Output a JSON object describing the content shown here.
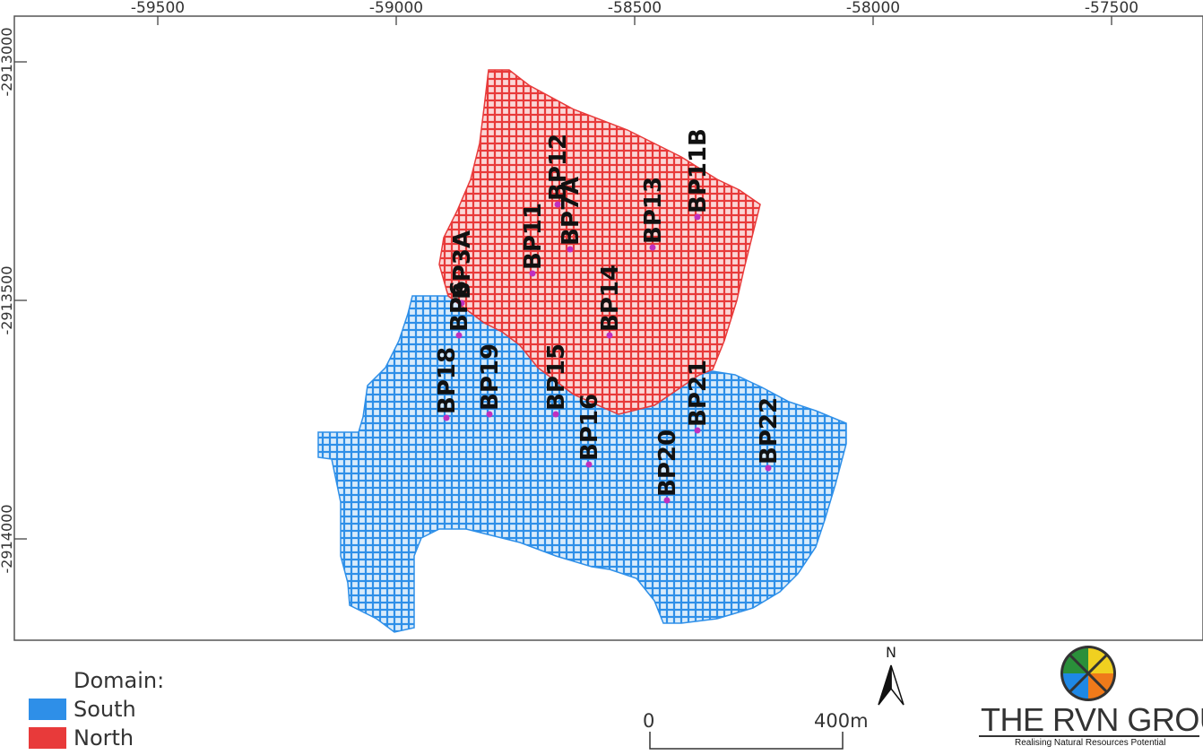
{
  "map": {
    "x_axis_ticks": [
      "-59500",
      "-59000",
      "-58500",
      "-58000",
      "-57500"
    ],
    "y_axis_ticks": [
      "-2913000",
      "-2913500",
      "-2914000"
    ],
    "colors": {
      "south": "#2e8fe8",
      "north": "#e83a3a",
      "collar": "#c02fc0",
      "frame": "#555555"
    },
    "drillholes": [
      {
        "id": "BP12",
        "domain": "North"
      },
      {
        "id": "BP7A",
        "domain": "North"
      },
      {
        "id": "BP11",
        "domain": "North"
      },
      {
        "id": "BP13",
        "domain": "North"
      },
      {
        "id": "BP11B",
        "domain": "North"
      },
      {
        "id": "BP3A",
        "domain": "North"
      },
      {
        "id": "BP6",
        "domain": "North"
      },
      {
        "id": "BP14",
        "domain": "North"
      },
      {
        "id": "BP18",
        "domain": "South"
      },
      {
        "id": "BP19",
        "domain": "South"
      },
      {
        "id": "BP15",
        "domain": "South"
      },
      {
        "id": "BP16",
        "domain": "South"
      },
      {
        "id": "BP21",
        "domain": "South"
      },
      {
        "id": "BP20",
        "domain": "South"
      },
      {
        "id": "BP22",
        "domain": "South"
      }
    ]
  },
  "legend": {
    "title": "Domain:",
    "items": [
      {
        "label": "South",
        "color": "#2e8fe8"
      },
      {
        "label": "North",
        "color": "#e83a3a"
      }
    ]
  },
  "north_arrow": {
    "letter": "N"
  },
  "scale_bar": {
    "start": "0",
    "end": "400m"
  },
  "logo": {
    "name": "THE RVN GROUP",
    "tagline": "Realising Natural Resources Potential",
    "icon_colors": [
      "#2a8f3a",
      "#f0d020",
      "#1e88e5",
      "#ef7a1a"
    ]
  }
}
